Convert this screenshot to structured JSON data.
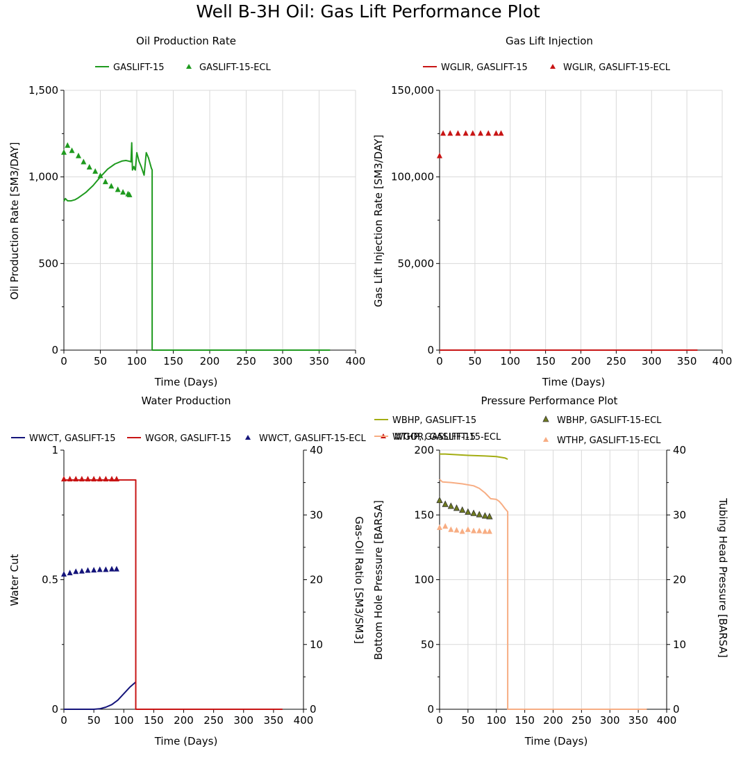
{
  "title": "Well B-3H Oil: Gas Lift Performance Plot",
  "colors": {
    "green": "#1e9a1e",
    "red": "#c81414",
    "navy": "#14147a",
    "olive": "#a3ad12",
    "olive_marker": "#6f7a1e",
    "salmon": "#f7ad83",
    "grid": "#d9d9d9"
  },
  "chart_data": [
    {
      "id": "oil",
      "type": "line",
      "title": "Oil Production Rate",
      "xlabel": "Time (Days)",
      "ylabel": "Oil Production Rate [SM3/DAY]",
      "xlim": [
        0,
        400
      ],
      "ylim": [
        0,
        1500
      ],
      "xticks": [
        0,
        50,
        100,
        150,
        200,
        250,
        300,
        350,
        400
      ],
      "yticks": [
        0,
        500,
        1000,
        1500
      ],
      "yticklabels": [
        "0",
        "500",
        "1,000",
        "1,500"
      ],
      "grid": true,
      "legend": "top",
      "series": [
        {
          "name": "GASLIFT-15",
          "kind": "line",
          "color": "#1e9a1e",
          "x": [
            0,
            2,
            5,
            10,
            15,
            20,
            30,
            40,
            50,
            60,
            70,
            80,
            85,
            90,
            92,
            93,
            94,
            95,
            96,
            97,
            98,
            100,
            103,
            106,
            110,
            113,
            114,
            116,
            118,
            120,
            121,
            121,
            130,
            150,
            200,
            250,
            300,
            365
          ],
          "y": [
            860,
            875,
            862,
            862,
            868,
            880,
            910,
            950,
            1000,
            1045,
            1075,
            1092,
            1095,
            1090,
            1087,
            1197,
            1040,
            1050,
            1060,
            1045,
            1040,
            1140,
            1090,
            1060,
            1010,
            1140,
            1130,
            1110,
            1080,
            1050,
            1040,
            0,
            0,
            0,
            0,
            0,
            0,
            0
          ]
        },
        {
          "name": "GASLIFT-15-ECL",
          "kind": "marker",
          "marker": "triangle",
          "color": "#1e9a1e",
          "x": [
            0,
            5,
            11,
            20,
            27,
            35,
            43,
            50,
            57,
            65,
            74,
            81,
            88,
            90
          ],
          "y": [
            1140,
            1180,
            1150,
            1120,
            1085,
            1055,
            1030,
            1005,
            970,
            945,
            925,
            910,
            900,
            895
          ]
        }
      ]
    },
    {
      "id": "gaslift",
      "type": "line",
      "title": "Gas Lift Injection",
      "xlabel": "Time (Days)",
      "ylabel": "Gas Lift Injection Rate [SM3/DAY]",
      "xlim": [
        0,
        400
      ],
      "ylim": [
        0,
        150000
      ],
      "xticks": [
        0,
        50,
        100,
        150,
        200,
        250,
        300,
        350,
        400
      ],
      "yticks": [
        0,
        50000,
        100000,
        150000
      ],
      "yticklabels": [
        "0",
        "50,000",
        "100,000",
        "150,000"
      ],
      "grid": true,
      "legend": "top",
      "series": [
        {
          "name": "WGLIR, GASLIFT-15",
          "kind": "line",
          "color": "#c81414",
          "x": [
            0,
            365
          ],
          "y": [
            0,
            0
          ]
        },
        {
          "name": "WGLIR, GASLIFT-15-ECL",
          "kind": "marker",
          "marker": "triangle",
          "color": "#c81414",
          "x": [
            0,
            5,
            15,
            26,
            37,
            47,
            58,
            69,
            80,
            87
          ],
          "y": [
            112000,
            125000,
            125000,
            125000,
            125000,
            125000,
            125000,
            125000,
            125000,
            125000
          ]
        }
      ]
    },
    {
      "id": "water",
      "type": "line",
      "title": "Water Production",
      "xlabel": "Time (Days)",
      "ylabel": "Water Cut",
      "y2label": "Gas-Oil Ratio [SM3/SM3]",
      "xlim": [
        0,
        400
      ],
      "ylim": [
        0,
        1
      ],
      "y2lim": [
        0,
        40
      ],
      "xticks": [
        0,
        50,
        100,
        150,
        200,
        250,
        300,
        350,
        400
      ],
      "yticks": [
        0,
        0.5,
        1
      ],
      "yticklabels": [
        "0",
        "0.5",
        "1"
      ],
      "y2ticks": [
        0,
        10,
        20,
        30,
        40
      ],
      "y2ticklabels": [
        "0",
        "10",
        "20",
        "30",
        "40"
      ],
      "grid": false,
      "legend": "top",
      "series": [
        {
          "name": "WWCT, GASLIFT-15",
          "kind": "line",
          "axis": "y",
          "color": "#14147a",
          "x": [
            0,
            50,
            60,
            70,
            80,
            90,
            100,
            110,
            120
          ],
          "y": [
            0,
            0,
            0.002,
            0.008,
            0.018,
            0.035,
            0.06,
            0.085,
            0.105
          ]
        },
        {
          "name": "WGOR, GASLIFT-15",
          "kind": "line",
          "axis": "y2",
          "color": "#c81414",
          "x": [
            0,
            120,
            120,
            365
          ],
          "y": [
            35.4,
            35.4,
            0,
            0
          ]
        },
        {
          "name": "WWCT, GASLIFT-15-ECL",
          "kind": "marker",
          "marker": "triangle",
          "axis": "y",
          "color": "#14147a",
          "x": [
            0,
            10,
            20,
            30,
            40,
            50,
            60,
            70,
            80,
            88
          ],
          "y": [
            0.52,
            0.525,
            0.53,
            0.532,
            0.535,
            0.536,
            0.538,
            0.538,
            0.54,
            0.54
          ]
        },
        {
          "name": "WGOR, GASLIFT-15-ECL",
          "kind": "marker",
          "marker": "triangle",
          "axis": "y2",
          "color": "#c81414",
          "x": [
            0,
            10,
            20,
            30,
            40,
            50,
            60,
            70,
            80,
            88
          ],
          "y": [
            35.5,
            35.5,
            35.5,
            35.5,
            35.5,
            35.5,
            35.5,
            35.5,
            35.5,
            35.5
          ]
        }
      ]
    },
    {
      "id": "pressure",
      "type": "line",
      "title": "Pressure Performance Plot",
      "xlabel": "Time (Days)",
      "ylabel": "Bottom Hole Pressure [BARSA]",
      "y2label": "Tubing Head Pressure [BARSA]",
      "xlim": [
        0,
        400
      ],
      "ylim": [
        0,
        200
      ],
      "y2lim": [
        0,
        40
      ],
      "xticks": [
        0,
        50,
        100,
        150,
        200,
        250,
        300,
        350,
        400
      ],
      "yticks": [
        0,
        50,
        100,
        150,
        200
      ],
      "yticklabels": [
        "0",
        "50",
        "100",
        "150",
        "200"
      ],
      "y2ticks": [
        0,
        10,
        20,
        30,
        40
      ],
      "y2ticklabels": [
        "0",
        "10",
        "20",
        "30",
        "40"
      ],
      "grid": true,
      "legend": "top",
      "series": [
        {
          "name": "WBHP, GASLIFT-15",
          "kind": "line",
          "axis": "y",
          "color": "#a3ad12",
          "x": [
            0,
            10,
            50,
            80,
            100,
            115,
            120
          ],
          "y": [
            197,
            197,
            196,
            195.5,
            195,
            194,
            193
          ]
        },
        {
          "name": "WBHP, GASLIFT-15-ECL",
          "kind": "marker",
          "marker": "triangle",
          "axis": "y",
          "color": "#6f7a1e",
          "x": [
            0,
            10,
            20,
            30,
            40,
            50,
            60,
            70,
            80,
            88
          ],
          "y": [
            161,
            158,
            156.5,
            155,
            153.5,
            152,
            151,
            150,
            149,
            148.5
          ]
        },
        {
          "name": "WTHP, GASLIFT-15",
          "kind": "line",
          "axis": "y2",
          "color": "#f7ad83",
          "x": [
            0,
            5,
            20,
            40,
            60,
            70,
            80,
            90,
            100,
            105,
            110,
            115,
            120,
            120,
            365
          ],
          "y": [
            35.5,
            35.1,
            35,
            34.8,
            34.5,
            34.1,
            33.4,
            32.5,
            32.4,
            32.1,
            31.6,
            31,
            30.5,
            0,
            0
          ]
        },
        {
          "name": "WTHP, GASLIFT-15-ECL",
          "kind": "marker",
          "marker": "triangle",
          "axis": "y2",
          "color": "#f7ad83",
          "x": [
            0,
            10,
            20,
            30,
            40,
            50,
            60,
            70,
            80,
            88
          ],
          "y": [
            28,
            28.2,
            27.7,
            27.6,
            27.4,
            27.7,
            27.5,
            27.5,
            27.4,
            27.4
          ]
        }
      ]
    }
  ]
}
